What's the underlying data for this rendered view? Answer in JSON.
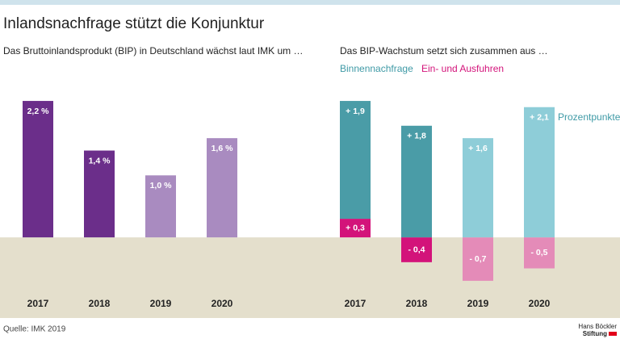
{
  "title": "Inlandsnachfrage stützt die Konjunktur",
  "source": "Quelle: IMK 2019",
  "logo": [
    "Hans Böckler",
    "Stiftung"
  ],
  "chart_data": [
    {
      "type": "bar",
      "subtitle": "Das Bruttoinlandsprodukt (BIP) in Deutschland wächst laut IMK um …",
      "categories": [
        "2017",
        "2018",
        "2019",
        "2020"
      ],
      "values": [
        2.2,
        1.4,
        1.0,
        1.6
      ],
      "value_labels": [
        "2,2 %",
        "1,4 %",
        "1,0 %",
        "1,6 %"
      ],
      "colors": [
        "#6b2e8a",
        "#6b2e8a",
        "#a98bc0",
        "#a98bc0"
      ],
      "ylim": [
        -1.3,
        2.5
      ]
    },
    {
      "type": "stacked_bar",
      "subtitle": "Das BIP-Wachstum setzt sich zusammen aus  …",
      "categories": [
        "2017",
        "2018",
        "2019",
        "2020"
      ],
      "series": [
        {
          "name": "Binnennachfrage",
          "color": "#3f9aa6",
          "colors": [
            "#4a9ca7",
            "#4a9ca7",
            "#8ecdd8",
            "#8ecdd8"
          ],
          "values": [
            1.9,
            1.8,
            1.6,
            2.1
          ],
          "value_labels": [
            "+ 1,9",
            "+ 1,8",
            "+ 1,6",
            "+ 2,1"
          ]
        },
        {
          "name": "Ein- und Ausfuhren",
          "color": "#d3137a",
          "colors": [
            "#d3137a",
            "#d3137a",
            "#e48bb8",
            "#e48bb8"
          ],
          "values": [
            0.3,
            -0.4,
            -0.7,
            -0.5
          ],
          "value_labels": [
            "+ 0,3",
            "- 0,4",
            "- 0,7",
            "- 0,5"
          ]
        }
      ],
      "annotation": "Prozentpunkte",
      "ylim": [
        -1.3,
        2.5
      ]
    }
  ]
}
